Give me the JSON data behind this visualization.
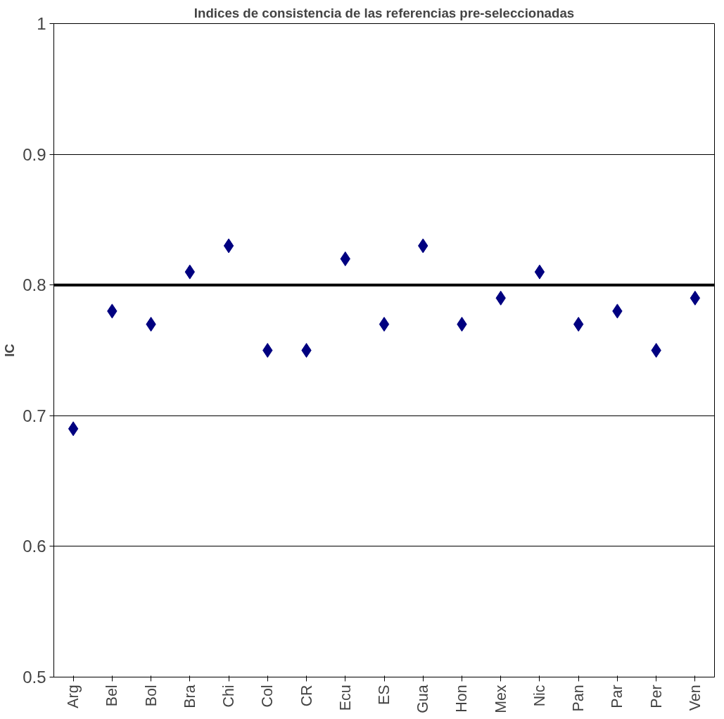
{
  "chart_data": {
    "type": "scatter",
    "title": "Indices de consistencia de las referencias pre-seleccionadas",
    "ylabel": "IC",
    "categories": [
      "Arg",
      "Bel",
      "Bol",
      "Bra",
      "Chi",
      "Col",
      "CR",
      "Ecu",
      "ES",
      "Gua",
      "Hon",
      "Mex",
      "Nic",
      "Pan",
      "Par",
      "Per",
      "Ven"
    ],
    "series": [
      {
        "color": "#000080",
        "values": [
          0.69,
          0.78,
          0.77,
          0.81,
          0.83,
          0.75,
          0.75,
          0.82,
          0.77,
          0.83,
          0.77,
          0.79,
          0.81,
          0.77,
          0.78,
          0.75,
          0.79
        ]
      }
    ],
    "ylim": [
      0.5,
      1
    ],
    "yticks": [
      0.5,
      0.6,
      0.7,
      0.8,
      0.9,
      1
    ],
    "grid": "y",
    "marker": "diamond",
    "ref_lines": [
      {
        "axis": "y",
        "value": 0.8,
        "label": null,
        "color": "#000000"
      }
    ]
  }
}
